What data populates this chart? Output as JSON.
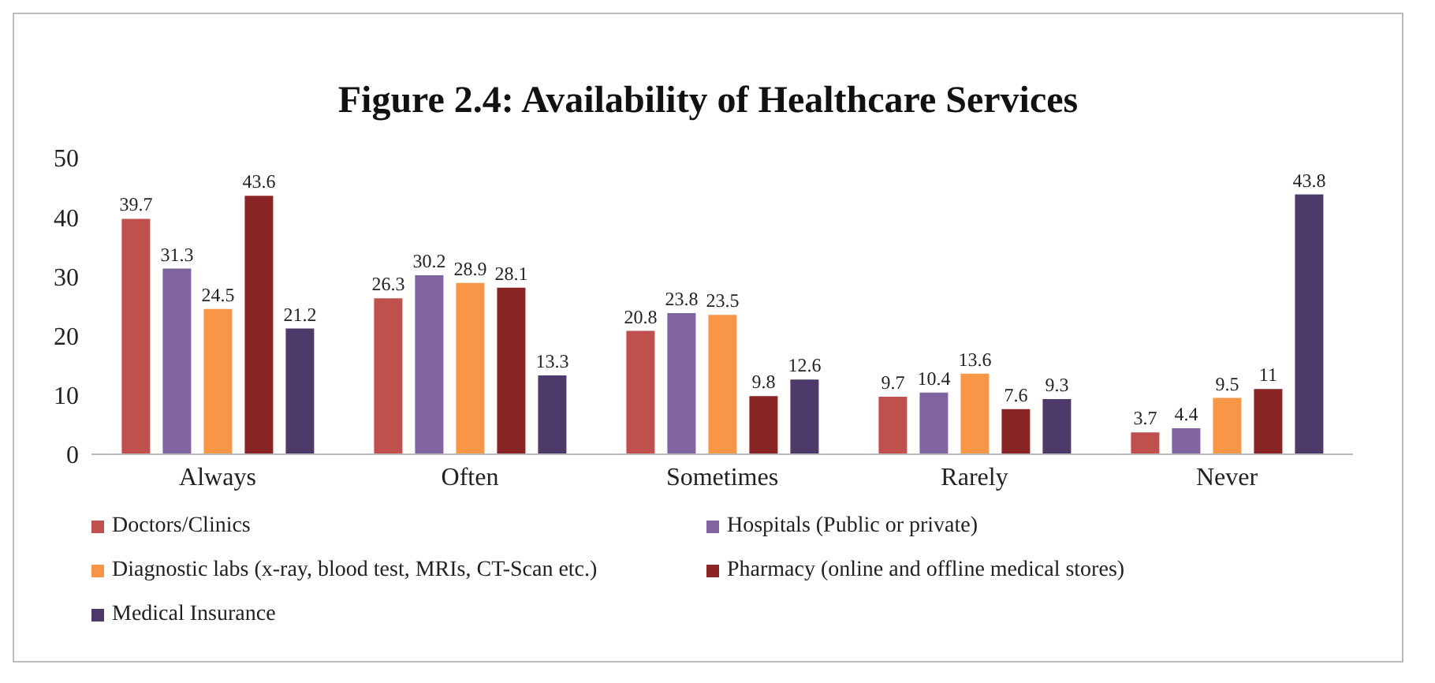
{
  "chart_data": {
    "type": "bar",
    "title": "Figure 2.4: Availability of Healthcare Services",
    "categories": [
      "Always",
      "Often",
      "Sometimes",
      "Rarely",
      "Never"
    ],
    "series": [
      {
        "name": "Doctors/Clinics",
        "color": "#c0504d",
        "values": [
          39.7,
          26.3,
          20.8,
          9.7,
          3.7
        ]
      },
      {
        "name": "Hospitals (Public or private)",
        "color": "#8064a2",
        "values": [
          31.3,
          30.2,
          23.8,
          10.4,
          4.4
        ]
      },
      {
        "name": "Diagnostic labs (x-ray, blood test, MRIs, CT-Scan etc.)",
        "color": "#f79646",
        "values": [
          24.5,
          28.9,
          23.5,
          13.6,
          9.5
        ]
      },
      {
        "name": "Pharmacy (online and offline medical stores)",
        "color": "#8b2525",
        "values": [
          43.6,
          28.1,
          9.8,
          7.6,
          11
        ]
      },
      {
        "name": "Medical Insurance",
        "color": "#4e3a6a",
        "values": [
          21.2,
          13.3,
          12.6,
          9.3,
          43.8
        ]
      }
    ],
    "ylim": [
      0,
      50
    ],
    "yticks": [
      0,
      10,
      20,
      30,
      40,
      50
    ],
    "grid": false,
    "legend": "bottom",
    "data_labels": true
  }
}
